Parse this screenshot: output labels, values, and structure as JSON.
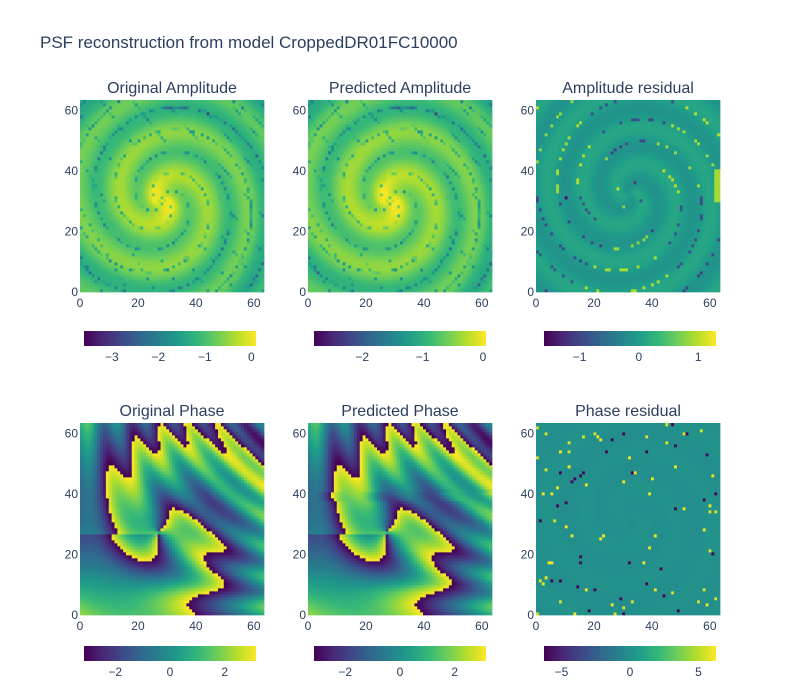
{
  "chart_data": {
    "title": "PSF reconstruction from model CroppedDR01FC10000",
    "type": "heatmap",
    "colorscale": "viridis",
    "colors": [
      "#440154",
      "#482878",
      "#3e4989",
      "#31688e",
      "#26828e",
      "#1f9e89",
      "#35b779",
      "#6ece58",
      "#b5de2b",
      "#fde725"
    ],
    "axis_ticks": [
      "0",
      "20",
      "40",
      "60"
    ],
    "panels": [
      {
        "id": "orig-amp",
        "title": "Original Amplitude",
        "kind": "amp",
        "zrange": [
          -3.6,
          0.1
        ],
        "colorbar_ticks": [
          {
            "v": -3,
            "t": "−3"
          },
          {
            "v": -2,
            "t": "−2"
          },
          {
            "v": -1,
            "t": "−1"
          },
          {
            "v": 0,
            "t": "0"
          }
        ]
      },
      {
        "id": "pred-amp",
        "title": "Predicted Amplitude",
        "kind": "amp",
        "zrange": [
          -2.8,
          0.05
        ],
        "colorbar_ticks": [
          {
            "v": -2,
            "t": "−2"
          },
          {
            "v": -1,
            "t": "−1"
          },
          {
            "v": 0,
            "t": "0"
          }
        ]
      },
      {
        "id": "amp-res",
        "title": "Amplitude residual",
        "kind": "ampres",
        "zrange": [
          -1.6,
          1.3
        ],
        "colorbar_ticks": [
          {
            "v": -1,
            "t": "−1"
          },
          {
            "v": 0,
            "t": "0"
          },
          {
            "v": 1,
            "t": "1"
          }
        ]
      },
      {
        "id": "orig-phase",
        "title": "Original Phase",
        "kind": "phase",
        "zrange": [
          -3.14,
          3.14
        ],
        "colorbar_ticks": [
          {
            "v": -2,
            "t": "−2"
          },
          {
            "v": 0,
            "t": "0"
          },
          {
            "v": 2,
            "t": "2"
          }
        ]
      },
      {
        "id": "pred-phase",
        "title": "Predicted Phase",
        "kind": "phase",
        "zrange": [
          -3.14,
          3.14
        ],
        "colorbar_ticks": [
          {
            "v": -2,
            "t": "−2"
          },
          {
            "v": 0,
            "t": "0"
          },
          {
            "v": 2,
            "t": "2"
          }
        ]
      },
      {
        "id": "phase-res",
        "title": "Phase residual",
        "kind": "phaseres",
        "zrange": [
          -6.28,
          6.28
        ],
        "colorbar_ticks": [
          {
            "v": -5,
            "t": "−5"
          },
          {
            "v": 0,
            "t": "0"
          },
          {
            "v": 5,
            "t": "5"
          }
        ]
      }
    ]
  }
}
